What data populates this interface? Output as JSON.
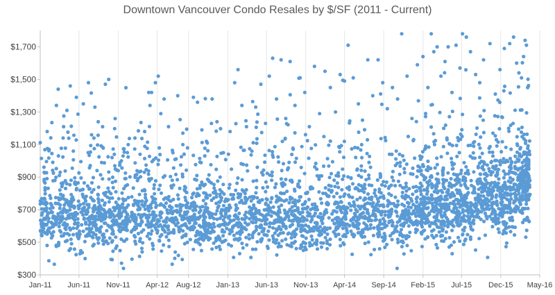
{
  "chart_data": {
    "type": "scatter",
    "title": "Downtown Vancouver Condo Resales by $/SF (2011 - Current)",
    "xlabel": "",
    "ylabel": "",
    "x_tick_labels": [
      "Jan-11",
      "Jun-11",
      "Nov-11",
      "Apr-12",
      "Aug-12",
      "Jan-13",
      "Jun-13",
      "Nov-13",
      "Apr-14",
      "Sep-14",
      "Feb-15",
      "Jul-15",
      "Dec-15",
      "May-16"
    ],
    "y_tick_labels": [
      "$300",
      "$500",
      "$700",
      "$900",
      "$1,100",
      "$1,300",
      "$1,500",
      "$1,700"
    ],
    "y_ticks": [
      300,
      500,
      700,
      900,
      1100,
      1300,
      1500,
      1700
    ],
    "ylim": [
      300,
      1800
    ],
    "xlim": [
      "2011-01-01",
      "2016-05-01"
    ],
    "x_tick_dates": [
      "2011-01-01",
      "2011-06-01",
      "2011-11-01",
      "2012-04-01",
      "2012-08-01",
      "2013-01-01",
      "2013-06-01",
      "2013-11-01",
      "2014-04-01",
      "2014-09-01",
      "2015-02-01",
      "2015-07-01",
      "2015-12-01",
      "2016-05-01"
    ],
    "grid": "vertical",
    "marker_color": "#5B9BD5",
    "series": [
      {
        "points": [
          {
            "x": "2011-01-15",
            "y": 640
          },
          {
            "x": "2011-01-20",
            "y": 820
          },
          {
            "x": "2011-01-28",
            "y": 1180
          },
          {
            "x": "2011-02-05",
            "y": 1070
          },
          {
            "x": "2011-02-18",
            "y": 540
          },
          {
            "x": "2011-02-25",
            "y": 365
          },
          {
            "x": "2011-03-05",
            "y": 1340
          },
          {
            "x": "2011-03-12",
            "y": 1440
          },
          {
            "x": "2011-03-20",
            "y": 930
          },
          {
            "x": "2011-04-02",
            "y": 1210
          },
          {
            "x": "2011-04-15",
            "y": 1310
          },
          {
            "x": "2011-04-28",
            "y": 1460
          },
          {
            "x": "2011-05-10",
            "y": 1060
          },
          {
            "x": "2011-05-22",
            "y": 1390
          },
          {
            "x": "2011-06-05",
            "y": 430
          },
          {
            "x": "2011-06-18",
            "y": 1350
          },
          {
            "x": "2011-06-25",
            "y": 400
          },
          {
            "x": "2011-07-08",
            "y": 1480
          },
          {
            "x": "2011-07-20",
            "y": 1160
          },
          {
            "x": "2011-08-02",
            "y": 1330
          },
          {
            "x": "2011-08-15",
            "y": 1240
          },
          {
            "x": "2011-09-01",
            "y": 1210
          },
          {
            "x": "2011-09-12",
            "y": 1470
          },
          {
            "x": "2011-09-25",
            "y": 1500
          },
          {
            "x": "2011-10-08",
            "y": 1020
          },
          {
            "x": "2011-11-01",
            "y": 940
          },
          {
            "x": "2011-11-20",
            "y": 1030
          },
          {
            "x": "2011-12-10",
            "y": 1100
          },
          {
            "x": "2012-01-05",
            "y": 1140
          },
          {
            "x": "2012-01-25",
            "y": 1040
          },
          {
            "x": "2012-02-12",
            "y": 1180
          },
          {
            "x": "2012-02-28",
            "y": 1420
          },
          {
            "x": "2012-03-10",
            "y": 1420
          },
          {
            "x": "2012-03-25",
            "y": 1480
          },
          {
            "x": "2012-04-05",
            "y": 1520
          },
          {
            "x": "2012-04-15",
            "y": 1290
          },
          {
            "x": "2012-04-28",
            "y": 1380
          },
          {
            "x": "2012-05-15",
            "y": 1210
          },
          {
            "x": "2012-06-01",
            "y": 1050
          },
          {
            "x": "2012-06-20",
            "y": 1400
          },
          {
            "x": "2012-07-10",
            "y": 1170
          },
          {
            "x": "2012-07-28",
            "y": 1080
          },
          {
            "x": "2012-08-20",
            "y": 1390
          },
          {
            "x": "2012-09-05",
            "y": 1360
          },
          {
            "x": "2012-09-22",
            "y": 1190
          },
          {
            "x": "2012-10-10",
            "y": 1120
          },
          {
            "x": "2012-11-01",
            "y": 1380
          },
          {
            "x": "2012-11-20",
            "y": 1240
          },
          {
            "x": "2012-12-15",
            "y": 1050
          },
          {
            "x": "2013-01-10",
            "y": 1180
          },
          {
            "x": "2013-01-28",
            "y": 1480
          },
          {
            "x": "2013-02-10",
            "y": 1560
          },
          {
            "x": "2013-02-25",
            "y": 1340
          },
          {
            "x": "2013-03-15",
            "y": 1210
          },
          {
            "x": "2013-04-05",
            "y": 1060
          },
          {
            "x": "2013-04-20",
            "y": 1330
          },
          {
            "x": "2013-05-10",
            "y": 1470
          },
          {
            "x": "2013-05-28",
            "y": 1230
          },
          {
            "x": "2013-06-12",
            "y": 1520
          },
          {
            "x": "2013-06-25",
            "y": 1630
          },
          {
            "x": "2013-07-10",
            "y": 1380
          },
          {
            "x": "2013-07-28",
            "y": 1620
          },
          {
            "x": "2013-08-15",
            "y": 1260
          },
          {
            "x": "2013-09-01",
            "y": 1610
          },
          {
            "x": "2013-09-20",
            "y": 1340
          },
          {
            "x": "2013-10-10",
            "y": 1510
          },
          {
            "x": "2013-10-28",
            "y": 1420
          },
          {
            "x": "2013-11-15",
            "y": 1210
          },
          {
            "x": "2013-12-05",
            "y": 1580
          },
          {
            "x": "2013-12-25",
            "y": 1290
          },
          {
            "x": "2014-01-15",
            "y": 1550
          },
          {
            "x": "2014-02-05",
            "y": 1450
          },
          {
            "x": "2014-02-25",
            "y": 1300
          },
          {
            "x": "2014-03-15",
            "y": 1530
          },
          {
            "x": "2014-04-01",
            "y": 1490
          },
          {
            "x": "2014-04-15",
            "y": 1710
          },
          {
            "x": "2014-05-05",
            "y": 1510
          },
          {
            "x": "2014-05-25",
            "y": 1350
          },
          {
            "x": "2014-06-10",
            "y": 1250
          },
          {
            "x": "2014-07-01",
            "y": 1620
          },
          {
            "x": "2014-07-20",
            "y": 1400
          },
          {
            "x": "2014-08-10",
            "y": 1620
          },
          {
            "x": "2014-08-28",
            "y": 1480
          },
          {
            "x": "2014-09-15",
            "y": 1320
          },
          {
            "x": "2014-10-05",
            "y": 1450
          },
          {
            "x": "2014-10-25",
            "y": 1380
          },
          {
            "x": "2014-11-10",
            "y": 1780
          },
          {
            "x": "2014-12-01",
            "y": 1520
          },
          {
            "x": "2014-12-20",
            "y": 1260
          },
          {
            "x": "2015-01-10",
            "y": 1590
          },
          {
            "x": "2015-02-01",
            "y": 1640
          },
          {
            "x": "2015-02-20",
            "y": 1450
          },
          {
            "x": "2015-03-05",
            "y": 1780
          },
          {
            "x": "2015-03-15",
            "y": 1670
          },
          {
            "x": "2015-03-28",
            "y": 1700
          },
          {
            "x": "2015-04-12",
            "y": 1520
          },
          {
            "x": "2015-04-28",
            "y": 1610
          },
          {
            "x": "2015-05-10",
            "y": 1700
          },
          {
            "x": "2015-05-25",
            "y": 1420
          },
          {
            "x": "2015-06-10",
            "y": 1710
          },
          {
            "x": "2015-06-25",
            "y": 1570
          },
          {
            "x": "2015-07-05",
            "y": 1780
          },
          {
            "x": "2015-07-20",
            "y": 1760
          },
          {
            "x": "2015-08-05",
            "y": 1670
          },
          {
            "x": "2015-08-25",
            "y": 1530
          },
          {
            "x": "2015-09-10",
            "y": 1480
          },
          {
            "x": "2015-09-25",
            "y": 1620
          },
          {
            "x": "2015-10-20",
            "y": 1720
          },
          {
            "x": "2015-11-10",
            "y": 1410
          },
          {
            "x": "2015-11-28",
            "y": 1560
          },
          {
            "x": "2015-12-15",
            "y": 1690
          },
          {
            "x": "2016-01-05",
            "y": 1720
          },
          {
            "x": "2016-01-20",
            "y": 1760
          },
          {
            "x": "2016-02-01",
            "y": 1600
          },
          {
            "x": "2016-02-10",
            "y": 1540
          },
          {
            "x": "2016-02-20",
            "y": 1510
          },
          {
            "x": "2016-02-28",
            "y": 1640
          },
          {
            "x": "2016-03-05",
            "y": 1740
          },
          {
            "x": "2016-03-10",
            "y": 1710
          },
          {
            "x": "2016-03-15",
            "y": 1450
          }
        ],
        "bulk_bands": [
          {
            "from": "2011-01-01",
            "to": "2011-12-31",
            "center": 650,
            "spread": 100,
            "count": 620
          },
          {
            "from": "2012-01-01",
            "to": "2012-12-31",
            "center": 640,
            "spread": 95,
            "count": 560
          },
          {
            "from": "2013-01-01",
            "to": "2013-12-31",
            "center": 645,
            "spread": 95,
            "count": 560
          },
          {
            "from": "2014-01-01",
            "to": "2014-12-31",
            "center": 665,
            "spread": 100,
            "count": 560
          },
          {
            "from": "2015-01-01",
            "to": "2015-08-31",
            "center": 720,
            "spread": 105,
            "count": 560
          },
          {
            "from": "2015-09-01",
            "to": "2016-01-31",
            "center": 760,
            "spread": 115,
            "count": 360
          },
          {
            "from": "2016-02-01",
            "to": "2016-03-25",
            "center": 860,
            "spread": 110,
            "count": 200
          }
        ],
        "bulk_outlier_rate": 0.18
      }
    ]
  }
}
